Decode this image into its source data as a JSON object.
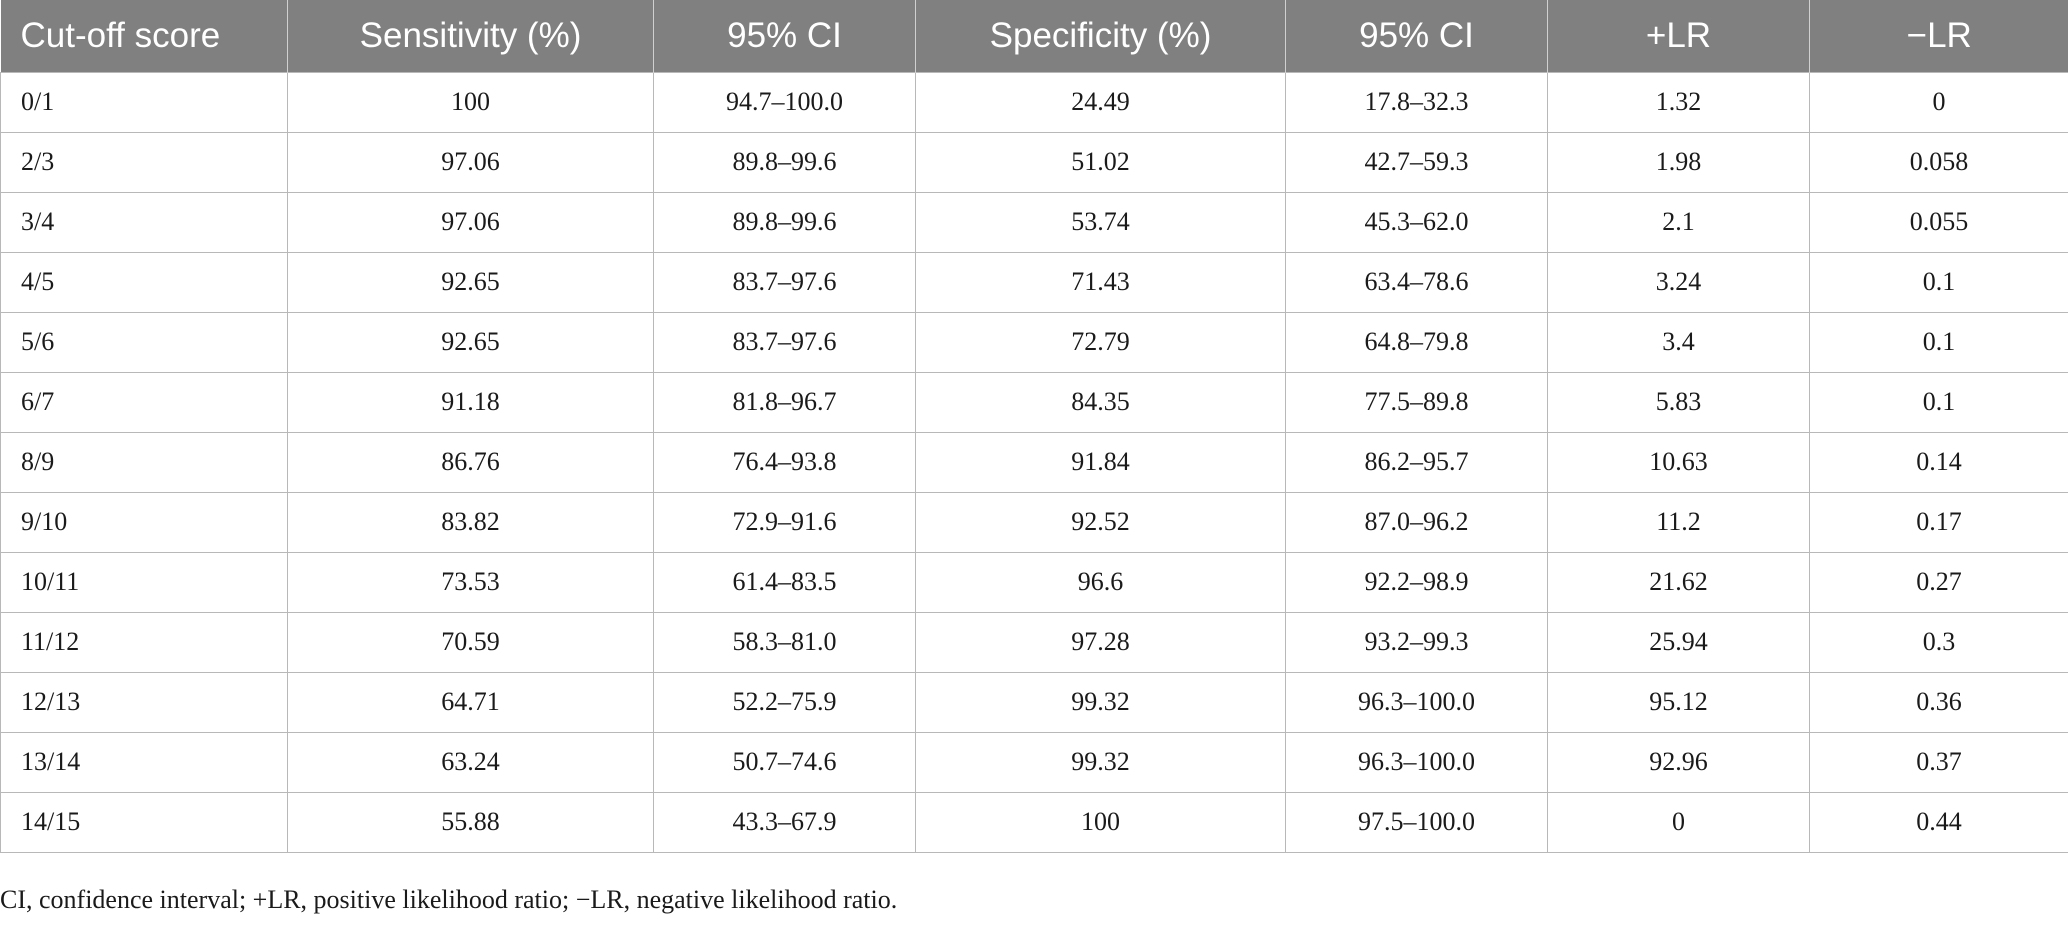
{
  "table": {
    "headers": [
      "Cut-off score",
      "Sensitivity (%)",
      "95% CI",
      "Specificity (%)",
      "95% CI",
      "+LR",
      "−LR"
    ],
    "rows": [
      [
        "0/1",
        "100",
        "94.7–100.0",
        "24.49",
        "17.8–32.3",
        "1.32",
        "0"
      ],
      [
        "2/3",
        "97.06",
        "89.8–99.6",
        "51.02",
        "42.7–59.3",
        "1.98",
        "0.058"
      ],
      [
        "3/4",
        "97.06",
        "89.8–99.6",
        "53.74",
        "45.3–62.0",
        "2.1",
        "0.055"
      ],
      [
        "4/5",
        "92.65",
        "83.7–97.6",
        "71.43",
        "63.4–78.6",
        "3.24",
        "0.1"
      ],
      [
        "5/6",
        "92.65",
        "83.7–97.6",
        "72.79",
        "64.8–79.8",
        "3.4",
        "0.1"
      ],
      [
        "6/7",
        "91.18",
        "81.8–96.7",
        "84.35",
        "77.5–89.8",
        "5.83",
        "0.1"
      ],
      [
        "8/9",
        "86.76",
        "76.4–93.8",
        "91.84",
        "86.2–95.7",
        "10.63",
        "0.14"
      ],
      [
        "9/10",
        "83.82",
        "72.9–91.6",
        "92.52",
        "87.0–96.2",
        "11.2",
        "0.17"
      ],
      [
        "10/11",
        "73.53",
        "61.4–83.5",
        "96.6",
        "92.2–98.9",
        "21.62",
        "0.27"
      ],
      [
        "11/12",
        "70.59",
        "58.3–81.0",
        "97.28",
        "93.2–99.3",
        "25.94",
        "0.3"
      ],
      [
        "12/13",
        "64.71",
        "52.2–75.9",
        "99.32",
        "96.3–100.0",
        "95.12",
        "0.36"
      ],
      [
        "13/14",
        "63.24",
        "50.7–74.6",
        "99.32",
        "96.3–100.0",
        "92.96",
        "0.37"
      ],
      [
        "14/15",
        "55.88",
        "43.3–67.9",
        "100",
        "97.5–100.0",
        "0",
        "0.44"
      ]
    ]
  },
  "footnote": "CI, confidence interval; +LR, positive likelihood ratio; −LR, negative likelihood ratio.",
  "colors": {
    "header_bg": "#808080",
    "header_text": "#ffffff",
    "grid": "#b8b8b8"
  }
}
